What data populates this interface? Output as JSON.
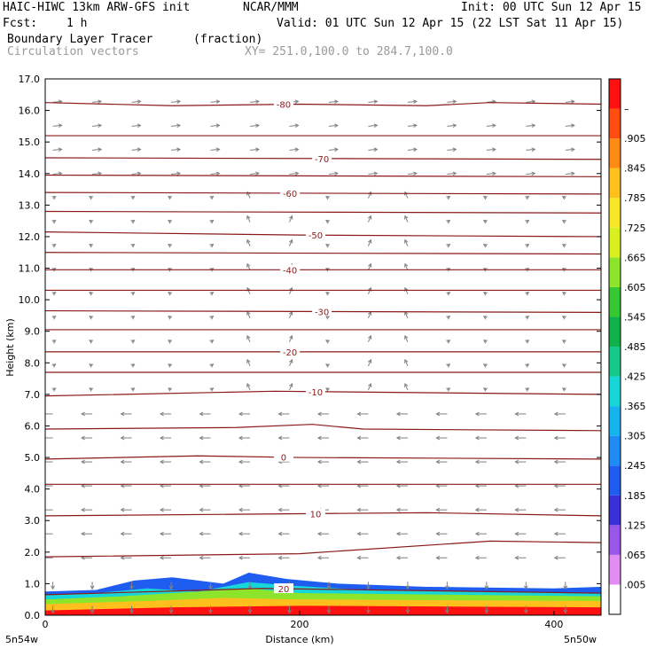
{
  "header": {
    "title_left": "HAIC-HIWC 13km ARW-GFS init",
    "org": "NCAR/MMM",
    "init": "Init: 00 UTC Sun 12 Apr 15",
    "fcst_label": "Fcst:",
    "fcst_value": "1 h",
    "valid": "Valid: 01 UTC Sun 12 Apr 15 (22 LST Sat 11 Apr 15)",
    "field": "Boundary Layer Tracer",
    "units": "(fraction)",
    "vectors": "Circulation vectors",
    "xy": "XY= 251.0,100.0 to 284.7,100.0"
  },
  "colors": {
    "contour": "#8b1a1a",
    "vector": "#808080"
  },
  "chart_data": {
    "type": "heatmap",
    "xlabel": "Distance (km)",
    "ylabel": "Height (km)",
    "xlim": [
      0,
      437
    ],
    "ylim": [
      0,
      17
    ],
    "x_ticks": [
      0,
      200,
      400
    ],
    "y_ticks": [
      "0.0",
      "1.0",
      "2.0",
      "3.0",
      "4.0",
      "5.0",
      "6.0",
      "7.0",
      "8.0",
      "9.0",
      "10.0",
      "11.0",
      "12.0",
      "13.0",
      "14.0",
      "15.0",
      "16.0",
      "17.0"
    ],
    "x_end_labels": [
      "5n54w",
      "5n50w"
    ],
    "colorbar": {
      "labels": [
        ".005",
        ".065",
        ".125",
        ".185",
        ".245",
        ".305",
        ".365",
        ".425",
        ".485",
        ".545",
        ".605",
        ".665",
        ".725",
        ".785",
        ".845",
        ".905",
        "–"
      ],
      "colors": [
        "#ffffff",
        "#e08cf0",
        "#9a56e8",
        "#3b2fd8",
        "#1f5cf0",
        "#1e8cf2",
        "#15b4f0",
        "#17d6d8",
        "#16c88a",
        "#10b04a",
        "#36c832",
        "#8ee42a",
        "#d8f020",
        "#f8e626",
        "#ffc01e",
        "#ff8a14",
        "#ff4c10",
        "#ff1010"
      ]
    },
    "contour_labels": [
      "-80",
      "-70",
      "-60",
      "-50",
      "-40",
      "-30",
      "-20",
      "-10",
      "0",
      "10",
      "20"
    ],
    "contours": [
      {
        "label": "-80",
        "x": [
          0,
          100,
          200,
          300,
          350,
          437
        ],
        "y": [
          16.25,
          16.15,
          16.2,
          16.15,
          16.25,
          16.2
        ]
      },
      {
        "label": "",
        "x": [
          0,
          437
        ],
        "y": [
          15.2,
          15.2
        ]
      },
      {
        "label": "-70",
        "x": [
          0,
          437
        ],
        "y": [
          14.5,
          14.45
        ]
      },
      {
        "label": "",
        "x": [
          0,
          437
        ],
        "y": [
          13.95,
          13.9
        ]
      },
      {
        "label": "-60",
        "x": [
          0,
          437
        ],
        "y": [
          13.4,
          13.35
        ]
      },
      {
        "label": "",
        "x": [
          0,
          437
        ],
        "y": [
          12.8,
          12.75
        ]
      },
      {
        "label": "-50",
        "x": [
          0,
          200,
          437
        ],
        "y": [
          12.15,
          12.05,
          12.0
        ]
      },
      {
        "label": "",
        "x": [
          0,
          437
        ],
        "y": [
          11.5,
          11.45
        ]
      },
      {
        "label": "-40",
        "x": [
          0,
          437
        ],
        "y": [
          10.95,
          10.95
        ]
      },
      {
        "label": "",
        "x": [
          0,
          437
        ],
        "y": [
          10.3,
          10.3
        ]
      },
      {
        "label": "-30",
        "x": [
          0,
          437
        ],
        "y": [
          9.65,
          9.6
        ]
      },
      {
        "label": "",
        "x": [
          0,
          437
        ],
        "y": [
          9.05,
          9.05
        ]
      },
      {
        "label": "-20",
        "x": [
          0,
          437
        ],
        "y": [
          8.35,
          8.35
        ]
      },
      {
        "label": "",
        "x": [
          0,
          437
        ],
        "y": [
          7.7,
          7.7
        ]
      },
      {
        "label": "-10",
        "x": [
          0,
          180,
          437
        ],
        "y": [
          6.95,
          7.1,
          7.0
        ]
      },
      {
        "label": "",
        "x": [
          0,
          150,
          210,
          250,
          437
        ],
        "y": [
          5.9,
          5.95,
          6.05,
          5.9,
          5.85
        ]
      },
      {
        "label": "0",
        "x": [
          0,
          120,
          200,
          437
        ],
        "y": [
          4.95,
          5.05,
          5.0,
          4.95
        ]
      },
      {
        "label": "",
        "x": [
          0,
          437
        ],
        "y": [
          4.15,
          4.15
        ]
      },
      {
        "label": "10",
        "x": [
          0,
          150,
          300,
          437
        ],
        "y": [
          3.15,
          3.2,
          3.25,
          3.15
        ]
      },
      {
        "label": "",
        "x": [
          0,
          200,
          350,
          437
        ],
        "y": [
          1.85,
          1.95,
          2.35,
          2.3
        ]
      },
      {
        "label": "20",
        "x": [
          0,
          130,
          170,
          437
        ],
        "y": [
          0.65,
          0.8,
          0.85,
          0.7
        ]
      }
    ],
    "tracer_layers": [
      {
        "color": "#1f5cf0",
        "x": [
          0,
          40,
          70,
          100,
          140,
          160,
          190,
          230,
          300,
          400,
          437
        ],
        "y": [
          0.75,
          0.8,
          1.1,
          1.2,
          1.0,
          1.35,
          1.15,
          1.0,
          0.9,
          0.85,
          0.9
        ]
      },
      {
        "color": "#17d6d8",
        "x": [
          0,
          40,
          80,
          120,
          160,
          190,
          250,
          437
        ],
        "y": [
          0.65,
          0.7,
          0.85,
          0.75,
          1.05,
          0.95,
          0.8,
          0.7
        ]
      },
      {
        "color": "#8ee42a",
        "x": [
          0,
          60,
          100,
          160,
          200,
          437
        ],
        "y": [
          0.5,
          0.6,
          0.7,
          0.85,
          0.7,
          0.6
        ]
      },
      {
        "color": "#ffc01e",
        "x": [
          0,
          80,
          140,
          200,
          437
        ],
        "y": [
          0.35,
          0.45,
          0.55,
          0.5,
          0.45
        ]
      },
      {
        "color": "#ff1010",
        "x": [
          0,
          100,
          200,
          437
        ],
        "y": [
          0.15,
          0.25,
          0.3,
          0.25
        ]
      }
    ],
    "grid": false
  }
}
